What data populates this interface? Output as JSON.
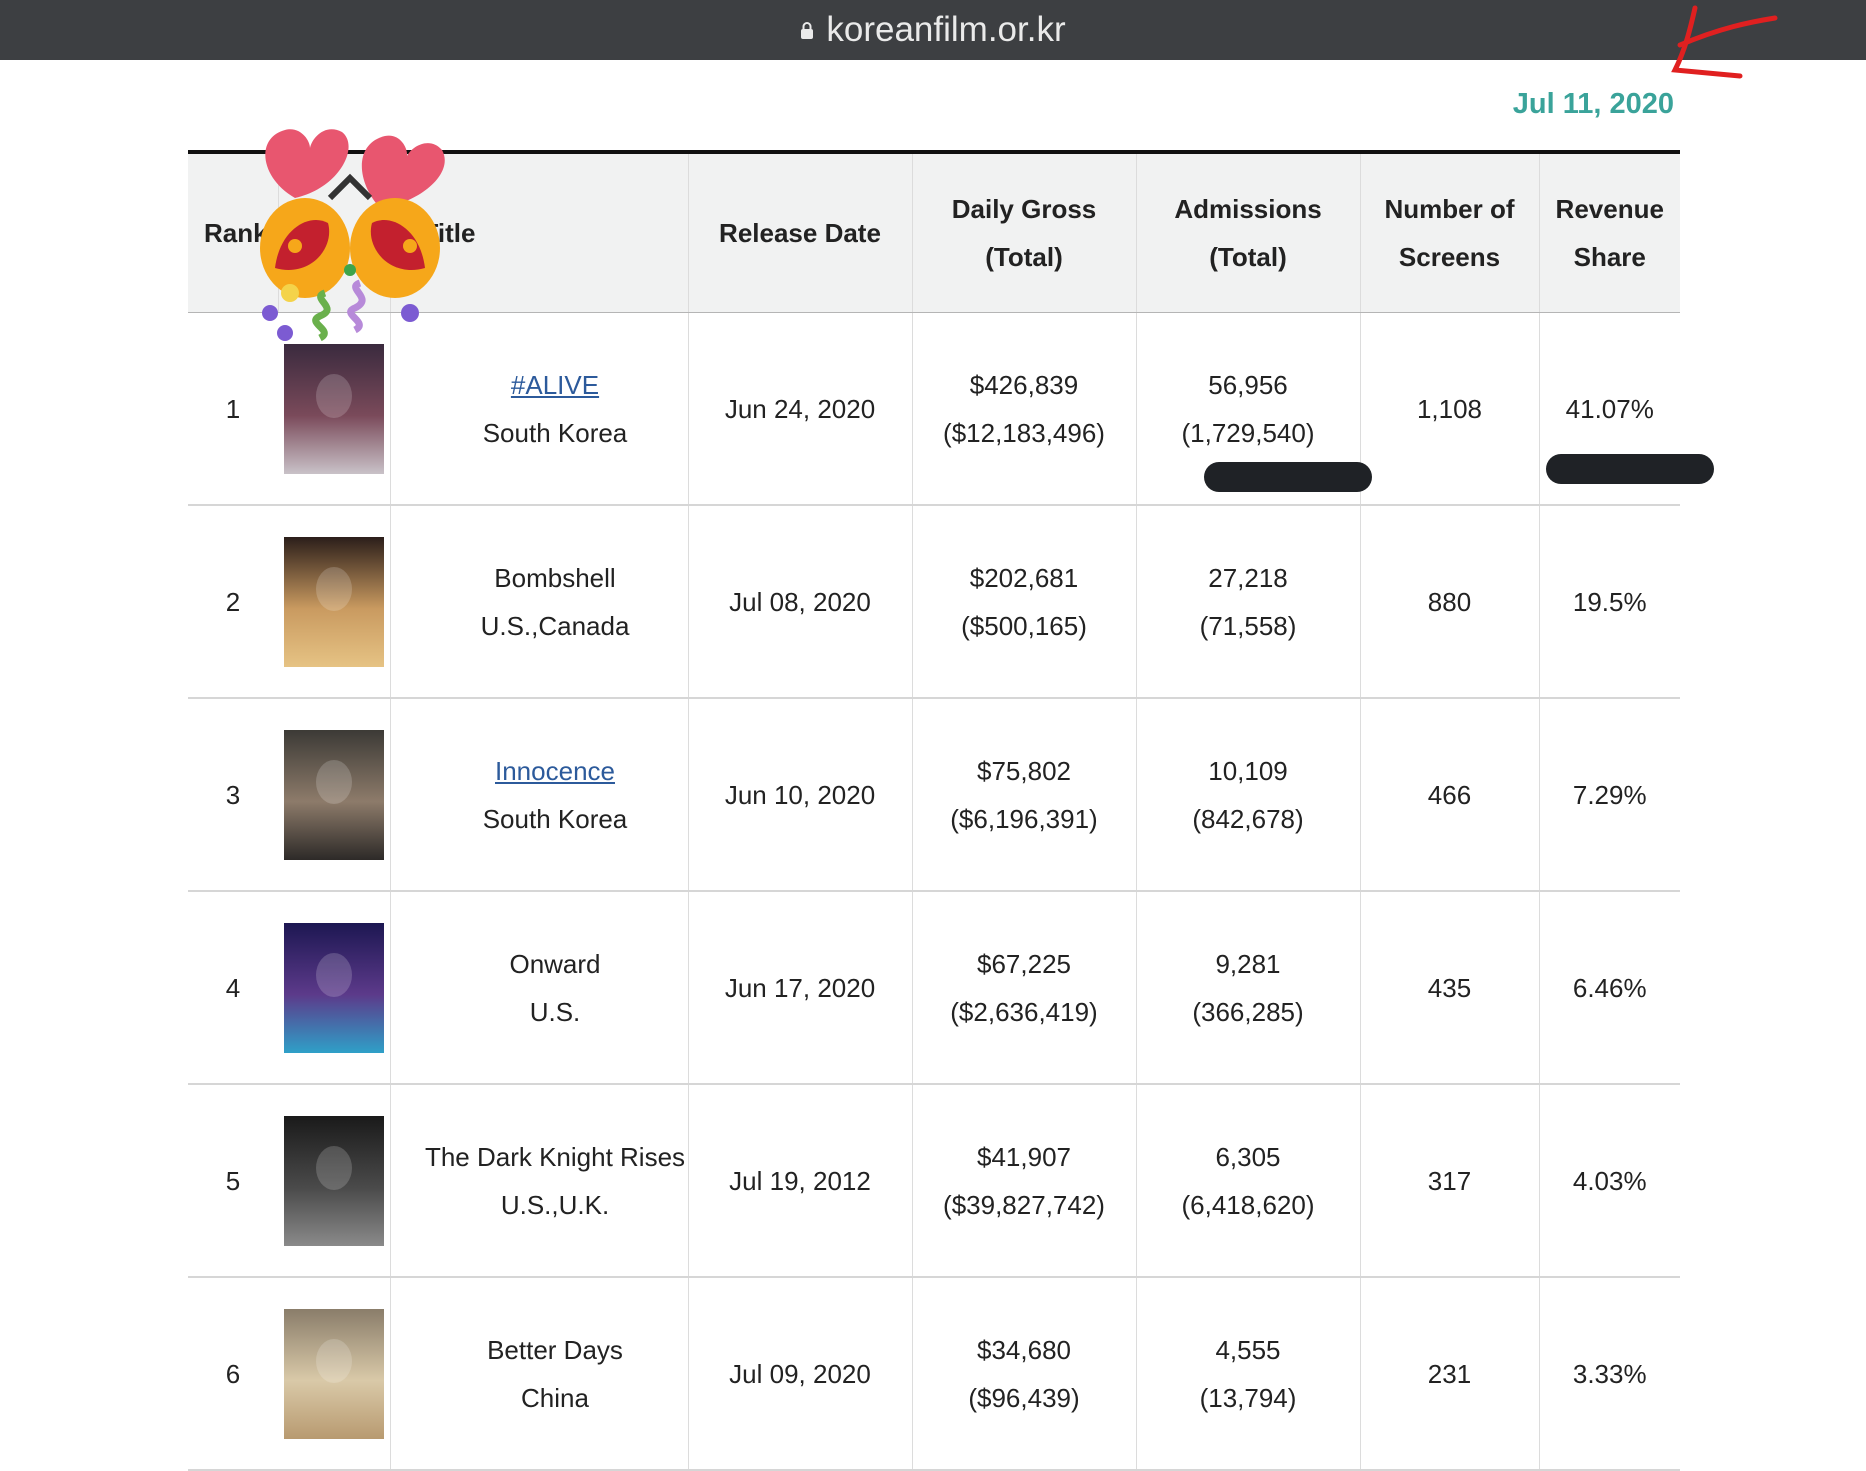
{
  "browser": {
    "url": "koreanfilm.or.kr",
    "lock_icon": "lock-icon"
  },
  "date": "Jul 11, 2020",
  "headers": {
    "rank": "Rank",
    "title": "Title",
    "release": "Release Date",
    "daily_gross_1": "Daily Gross",
    "daily_gross_2": "(Total)",
    "admissions_1": "Admissions",
    "admissions_2": "(Total)",
    "screens_1": "Number of",
    "screens_2": "Screens",
    "share_1": "Revenue",
    "share_2": "Share"
  },
  "rows": [
    {
      "rank": "1",
      "title": "#ALIVE",
      "country": "South Korea",
      "link": true,
      "release": "Jun 24, 2020",
      "gross": "$426,839",
      "gross_total": "($12,183,496)",
      "adm": "56,956",
      "adm_total": "(1,729,540)",
      "screens": "1,108",
      "share": "41.07%"
    },
    {
      "rank": "2",
      "title": "Bombshell",
      "country": "U.S.,Canada",
      "link": false,
      "release": "Jul 08, 2020",
      "gross": "$202,681",
      "gross_total": "($500,165)",
      "adm": "27,218",
      "adm_total": "(71,558)",
      "screens": "880",
      "share": "19.5%"
    },
    {
      "rank": "3",
      "title": "Innocence",
      "country": "South Korea",
      "link": true,
      "release": "Jun 10, 2020",
      "gross": "$75,802",
      "gross_total": "($6,196,391)",
      "adm": "10,109",
      "adm_total": "(842,678)",
      "screens": "466",
      "share": "7.29%"
    },
    {
      "rank": "4",
      "title": "Onward",
      "country": "U.S.",
      "link": false,
      "release": "Jun 17, 2020",
      "gross": "$67,225",
      "gross_total": "($2,636,419)",
      "adm": "9,281",
      "adm_total": "(366,285)",
      "screens": "435",
      "share": "6.46%"
    },
    {
      "rank": "5",
      "title": "The Dark Knight Rises",
      "country": "U.S.,U.K.",
      "link": false,
      "release": "Jul 19, 2012",
      "gross": "$41,907",
      "gross_total": "($39,827,742)",
      "adm": "6,305",
      "adm_total": "(6,418,620)",
      "screens": "317",
      "share": "4.03%"
    },
    {
      "rank": "6",
      "title": "Better Days",
      "country": "China",
      "link": false,
      "release": "Jul 09, 2020",
      "gross": "$34,680",
      "gross_total": "($96,439)",
      "adm": "4,555",
      "adm_total": "(13,794)",
      "screens": "231",
      "share": "3.33%"
    }
  ],
  "colors": {
    "accent_date": "#3aa39a",
    "link": "#2c5a9b",
    "urlbar": "#3d3f42",
    "header_bg": "#f1f2f2"
  }
}
